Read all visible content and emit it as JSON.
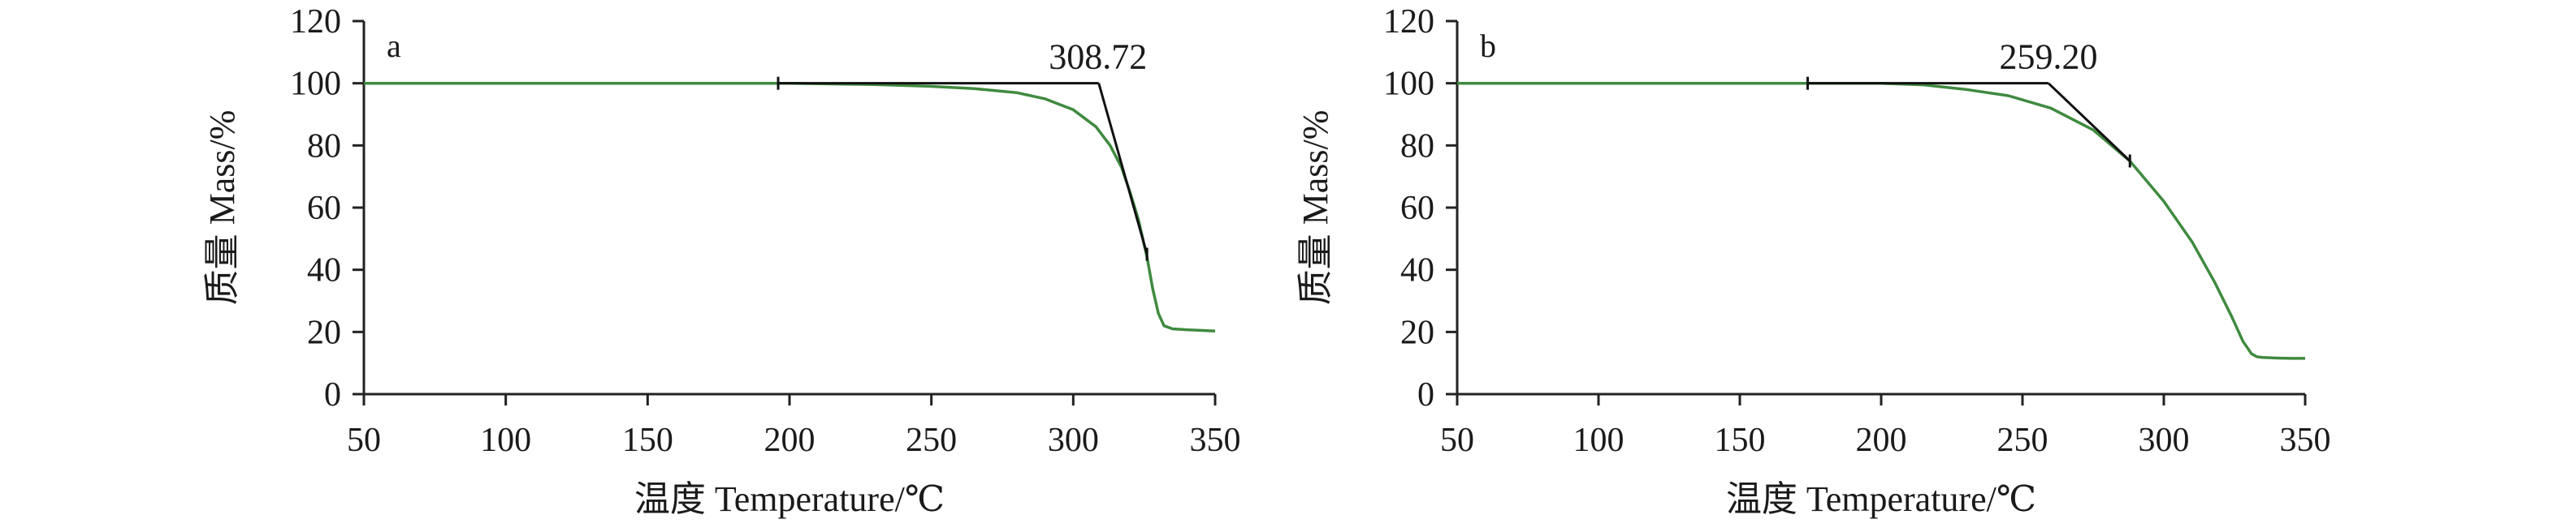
{
  "chart_data": [
    {
      "type": "line",
      "panel_label": "a",
      "xlabel": "温度 Temperature/℃",
      "ylabel": "质量 Mass/%",
      "xlim": [
        50,
        350
      ],
      "ylim": [
        0,
        120
      ],
      "x_ticks": [
        "50",
        "100",
        "150",
        "200",
        "250",
        "300",
        "350"
      ],
      "y_ticks": [
        "0",
        "20",
        "40",
        "60",
        "80",
        "100",
        "120"
      ],
      "grid": false,
      "legend": "none",
      "series": [
        {
          "color": "#3f8a3f",
          "x": [
            50,
            100,
            150,
            200,
            230,
            250,
            265,
            280,
            290,
            300,
            308,
            313,
            317,
            320,
            323,
            326,
            328,
            330,
            332,
            335,
            340,
            345,
            350
          ],
          "y": [
            100,
            100,
            100,
            100,
            99.6,
            99,
            98.3,
            97,
            95,
            91.5,
            86,
            80,
            73,
            65,
            56,
            44,
            34,
            26,
            22,
            21,
            20.7,
            20.5,
            20.3
          ]
        }
      ],
      "onset_construction": {
        "baseline": {
          "x": [
            196,
            309
          ],
          "y": [
            100,
            100
          ]
        },
        "tangent": {
          "x": [
            309,
            326
          ],
          "y": [
            100,
            45
          ]
        }
      },
      "annotations": [
        {
          "text": "308.72",
          "x": 308.72,
          "y": 100
        }
      ]
    },
    {
      "type": "line",
      "panel_label": "b",
      "xlabel": "温度 Temperature/℃",
      "ylabel": "质量 Mass/%",
      "xlim": [
        50,
        350
      ],
      "ylim": [
        0,
        120
      ],
      "x_ticks": [
        "50",
        "100",
        "150",
        "200",
        "250",
        "300",
        "350"
      ],
      "y_ticks": [
        "0",
        "20",
        "40",
        "60",
        "80",
        "100",
        "120"
      ],
      "grid": false,
      "legend": "none",
      "series": [
        {
          "color": "#3f8a3f",
          "x": [
            50,
            100,
            150,
            200,
            215,
            230,
            245,
            260,
            275,
            288,
            300,
            310,
            318,
            324,
            328,
            331,
            333,
            335,
            340,
            345,
            350
          ],
          "y": [
            100,
            100,
            100,
            100,
            99.5,
            98,
            96,
            92,
            85,
            75,
            62,
            49,
            36,
            25,
            17,
            13,
            12,
            11.8,
            11.6,
            11.5,
            11.5
          ]
        }
      ],
      "onset_construction": {
        "baseline": {
          "x": [
            174,
            259.2
          ],
          "y": [
            100,
            100
          ]
        },
        "tangent": {
          "x": [
            259.2,
            288
          ],
          "y": [
            100,
            75
          ]
        }
      },
      "annotations": [
        {
          "text": "259.20",
          "x": 259.2,
          "y": 100
        }
      ]
    }
  ]
}
